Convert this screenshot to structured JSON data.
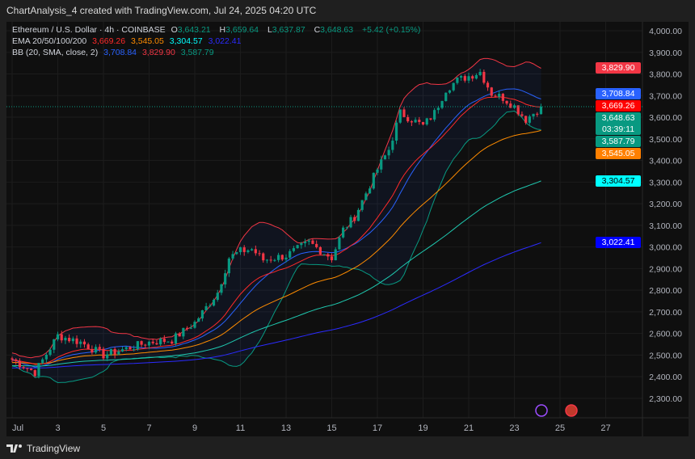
{
  "header": {
    "title": "ChartAnalysis_4 created with TradingView.com, Jul 24, 2025 04:20 UTC"
  },
  "legend": {
    "symbol": "Ethereum / U.S. Dollar · 4h · COINBASE",
    "o_label": "O",
    "o": "3,643.21",
    "h_label": "H",
    "h": "3,659.64",
    "l_label": "L",
    "l": "3,637.87",
    "c_label": "C",
    "c": "3,648.63",
    "change": "+5.42 (+0.15%)",
    "ema_label": "EMA 20/50/100/200",
    "ema20": "3,669.26",
    "ema50": "3,545.05",
    "ema100": "3,304.57",
    "ema200": "3,022.41",
    "bb_label": "BB (20, SMA, close, 2)",
    "bb_basis": "3,708.84",
    "bb_upper": "3,829.90",
    "bb_lower": "3,587.79"
  },
  "badges": [
    {
      "text": "3,829.90",
      "price": 3829.9,
      "color": "#f23645"
    },
    {
      "text": "3,708.84",
      "price": 3708.84,
      "color": "#2962ff"
    },
    {
      "text": "3,669.26",
      "price": 3669.26,
      "color": "#ff0000"
    },
    {
      "text": "3,648.63",
      "sub": "03:39:11",
      "price": 3648.63,
      "color": "#089981"
    },
    {
      "text": "3,587.79",
      "price": 3587.79,
      "color": "#089981"
    },
    {
      "text": "3,545.05",
      "price": 3545.05,
      "color": "#ff8000"
    },
    {
      "text": "3,304.57",
      "price": 3304.57,
      "color": "#00ffff",
      "textcolor": "#000000"
    },
    {
      "text": "3,022.41",
      "price": 3022.41,
      "color": "#0000ff"
    }
  ],
  "colors": {
    "up": "#089981",
    "down": "#f23645",
    "ema20": "#ff2a2a",
    "ema50": "#ff8c00",
    "ema100": "#1fc9b0",
    "ema200": "#2b2bff",
    "bb_basis": "#2962ff",
    "bb_upper": "#f23645",
    "bb_lower": "#089981"
  },
  "chart_data": {
    "type": "candlestick",
    "interval": "4h",
    "yaxis": {
      "min": 2300,
      "max": 4000,
      "step": 100,
      "labels": [
        "4,000.00",
        "3,900.00",
        "3,800.00",
        "3,700.00",
        "3,600.00",
        "3,500.00",
        "3,400.00",
        "3,300.00",
        "3,200.00",
        "3,100.00",
        "3,000.00",
        "2,900.00",
        "2,800.00",
        "2,700.00",
        "2,600.00",
        "2,500.00",
        "2,400.00",
        "2,300.00"
      ]
    },
    "xaxis": {
      "labels": [
        "Jul",
        "3",
        "5",
        "7",
        "9",
        "11",
        "13",
        "15",
        "17",
        "19",
        "21",
        "23",
        "25",
        "27"
      ],
      "days": [
        1,
        3,
        5,
        7,
        9,
        11,
        13,
        15,
        17,
        19,
        21,
        23,
        25,
        27
      ]
    },
    "close_keypoints": [
      [
        1,
        2480
      ],
      [
        2,
        2420
      ],
      [
        3,
        2590
      ],
      [
        4,
        2560
      ],
      [
        5,
        2500
      ],
      [
        6,
        2530
      ],
      [
        7,
        2560
      ],
      [
        8,
        2570
      ],
      [
        9,
        2650
      ],
      [
        10,
        2790
      ],
      [
        10.5,
        2950
      ],
      [
        11,
        2980
      ],
      [
        11.5,
        2990
      ],
      [
        12,
        2940
      ],
      [
        13,
        2960
      ],
      [
        14,
        3020
      ],
      [
        15,
        2950
      ],
      [
        15.5,
        3080
      ],
      [
        16,
        3140
      ],
      [
        16.5,
        3250
      ],
      [
        17,
        3360
      ],
      [
        17.5,
        3450
      ],
      [
        18,
        3620
      ],
      [
        18.5,
        3590
      ],
      [
        19,
        3560
      ],
      [
        19.5,
        3620
      ],
      [
        20,
        3730
      ],
      [
        20.5,
        3770
      ],
      [
        21,
        3790
      ],
      [
        21.5,
        3810
      ],
      [
        22,
        3710
      ],
      [
        22.5,
        3690
      ],
      [
        23,
        3650
      ],
      [
        23.5,
        3590
      ],
      [
        24.17,
        3648.63
      ]
    ],
    "last_price": 3648.63
  },
  "footer": {
    "brand": "TradingView"
  }
}
